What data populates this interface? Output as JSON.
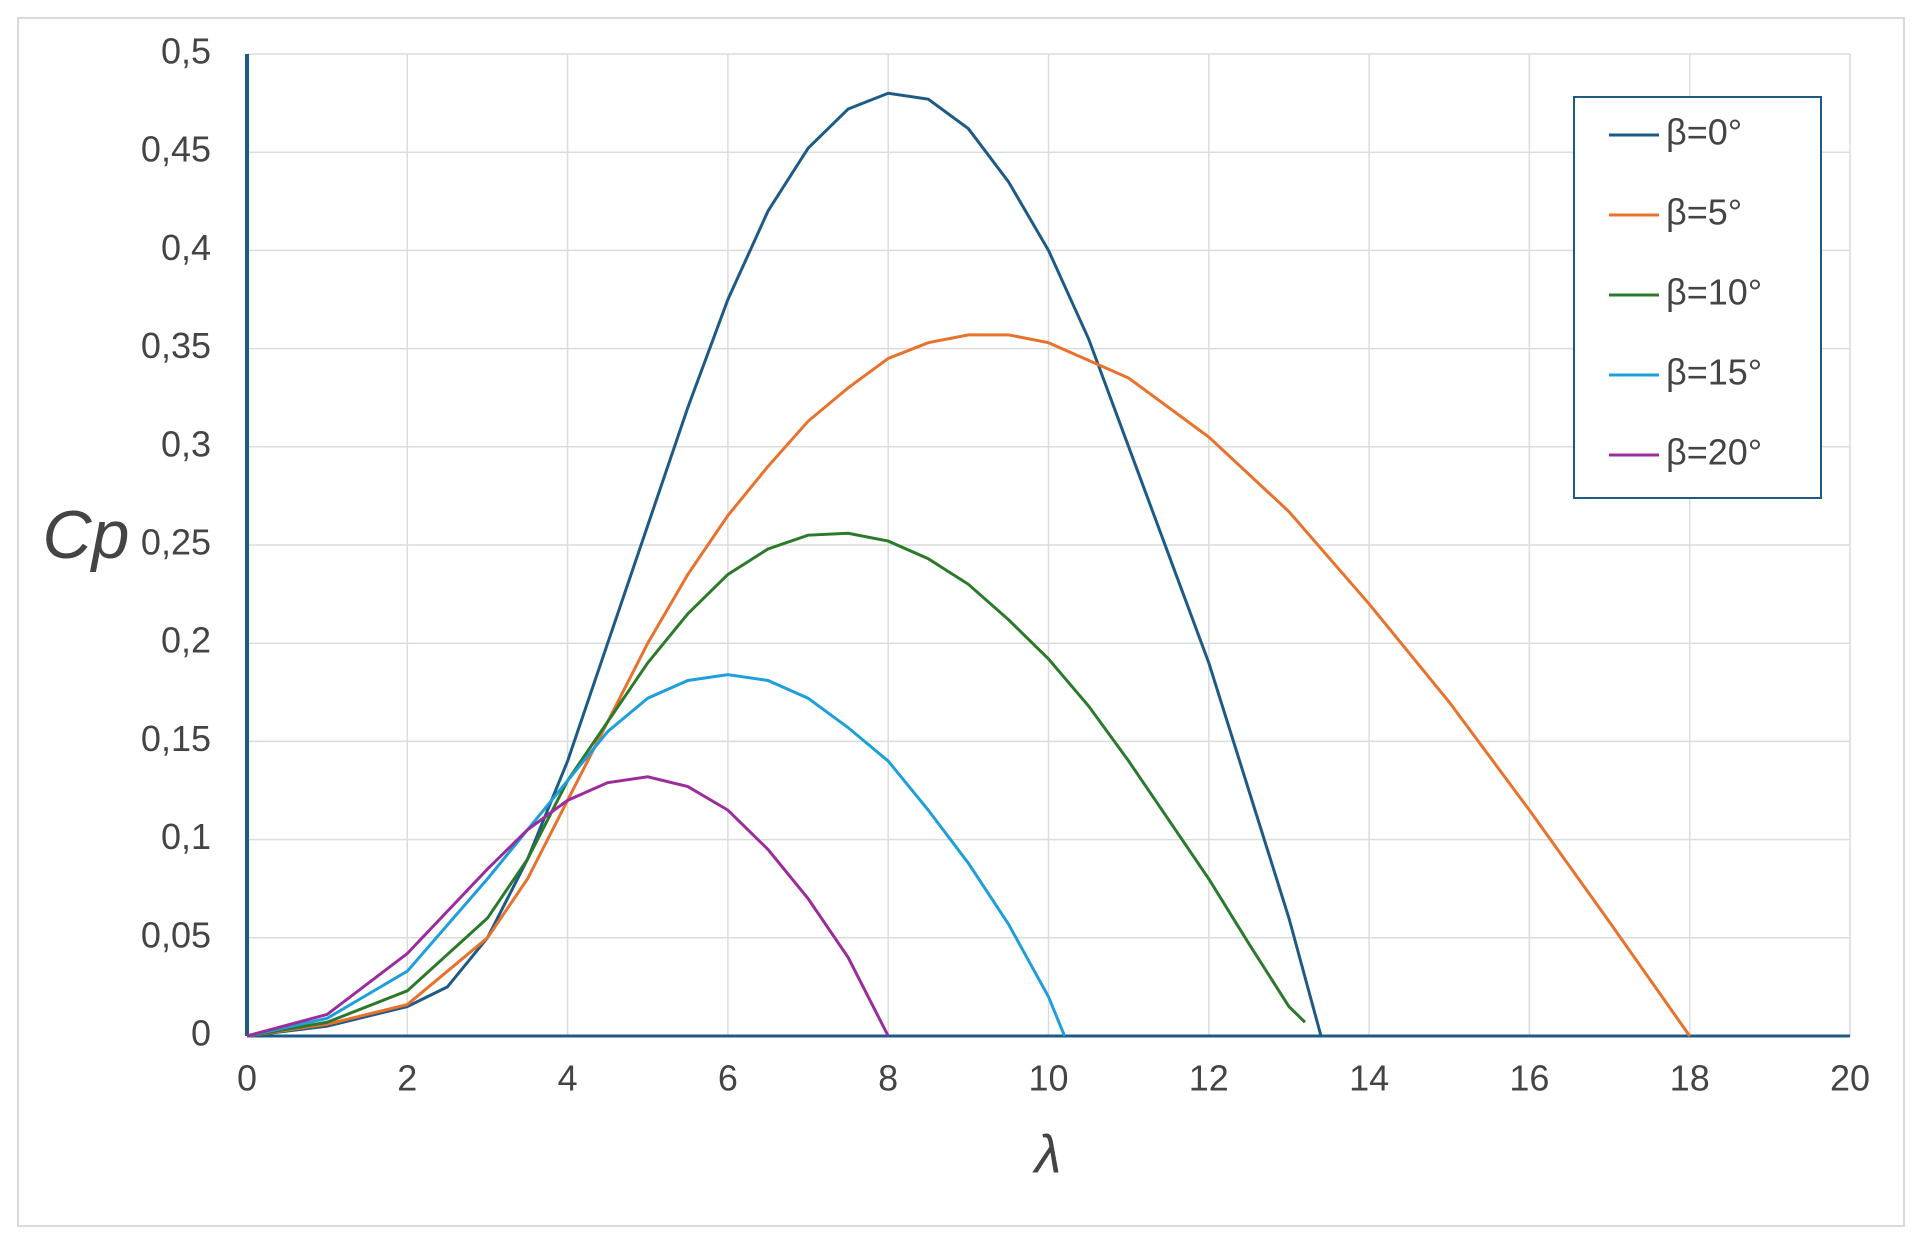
{
  "chart_data": {
    "type": "line",
    "xlabel": "λ",
    "ylabel": "Cp",
    "xlim": [
      0,
      20
    ],
    "ylim": [
      0,
      0.5
    ],
    "xticks": [
      0,
      2,
      4,
      6,
      8,
      10,
      12,
      14,
      16,
      18,
      20
    ],
    "yticks": [
      0,
      {
        "value": 0.05,
        "label": "0,05"
      },
      {
        "value": 0.1,
        "label": "0,1"
      },
      {
        "value": 0.15,
        "label": "0,15"
      },
      {
        "value": 0.2,
        "label": "0,2"
      },
      {
        "value": 0.25,
        "label": "0,25"
      },
      {
        "value": 0.3,
        "label": "0,3"
      },
      {
        "value": 0.35,
        "label": "0,35"
      },
      {
        "value": 0.4,
        "label": "0,4"
      },
      {
        "value": 0.45,
        "label": "0,45"
      },
      {
        "value": 0.5,
        "label": "0,5"
      }
    ],
    "grid": true,
    "legend": "upper right",
    "series": [
      {
        "name": "β=0°",
        "color": "#1d5a85",
        "x": [
          0,
          1,
          2,
          2.5,
          3,
          3.5,
          4,
          4.5,
          5,
          5.5,
          6,
          6.5,
          7,
          7.5,
          8,
          8.5,
          9,
          9.5,
          10,
          10.5,
          11,
          11.5,
          12,
          12.5,
          13,
          13.4
        ],
        "values": [
          0,
          0.005,
          0.015,
          0.025,
          0.05,
          0.09,
          0.14,
          0.2,
          0.26,
          0.32,
          0.375,
          0.42,
          0.452,
          0.472,
          0.48,
          0.477,
          0.462,
          0.435,
          0.4,
          0.355,
          0.3,
          0.245,
          0.19,
          0.125,
          0.06,
          0
        ]
      },
      {
        "name": "β=5°",
        "color": "#e8722c",
        "x": [
          0,
          1,
          2,
          3,
          3.5,
          4,
          4.5,
          5,
          5.5,
          6,
          6.5,
          7,
          7.5,
          8,
          8.5,
          9,
          9.5,
          10,
          11,
          12,
          13,
          14,
          15,
          16,
          17,
          18
        ],
        "values": [
          0,
          0.006,
          0.016,
          0.05,
          0.08,
          0.12,
          0.16,
          0.2,
          0.235,
          0.265,
          0.29,
          0.313,
          0.33,
          0.345,
          0.353,
          0.357,
          0.357,
          0.353,
          0.335,
          0.305,
          0.267,
          0.22,
          0.17,
          0.115,
          0.058,
          0
        ]
      },
      {
        "name": "β=10°",
        "color": "#2b7a2b",
        "x": [
          0,
          1,
          2,
          3,
          3.5,
          4,
          4.5,
          5,
          5.5,
          6,
          6.5,
          7,
          7.5,
          8,
          8.5,
          9,
          9.5,
          10,
          10.5,
          11,
          11.5,
          12,
          12.5,
          13,
          13.2
        ],
        "values": [
          0,
          0.007,
          0.023,
          0.06,
          0.09,
          0.13,
          0.16,
          0.19,
          0.215,
          0.235,
          0.248,
          0.255,
          0.256,
          0.252,
          0.243,
          0.23,
          0.212,
          0.192,
          0.168,
          0.14,
          0.11,
          0.08,
          0.047,
          0.015,
          0.007
        ]
      },
      {
        "name": "β=15°",
        "color": "#1e9fdc",
        "x": [
          0,
          1,
          2,
          3,
          3.5,
          4,
          4.5,
          5,
          5.5,
          6,
          6.5,
          7,
          7.5,
          8,
          8.5,
          9,
          9.5,
          10,
          10.2
        ],
        "values": [
          0,
          0.009,
          0.033,
          0.08,
          0.105,
          0.13,
          0.155,
          0.172,
          0.181,
          0.184,
          0.181,
          0.172,
          0.157,
          0.14,
          0.115,
          0.088,
          0.057,
          0.02,
          0
        ]
      },
      {
        "name": "β=20°",
        "color": "#9b2c9b",
        "x": [
          0,
          1,
          2,
          3,
          3.5,
          4,
          4.5,
          5,
          5.5,
          6,
          6.5,
          7,
          7.5,
          8
        ],
        "values": [
          0,
          0.011,
          0.042,
          0.085,
          0.105,
          0.12,
          0.129,
          0.132,
          0.127,
          0.115,
          0.095,
          0.07,
          0.04,
          0
        ]
      }
    ]
  }
}
